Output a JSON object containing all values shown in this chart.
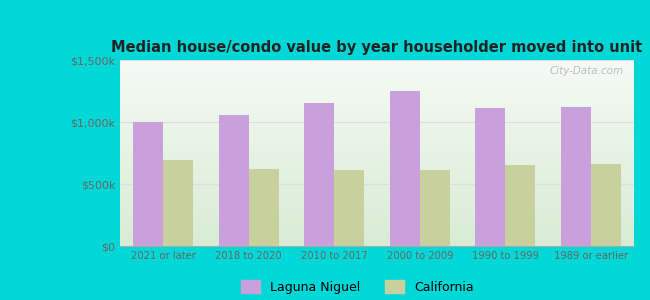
{
  "title": "Median house/condo value by year householder moved into unit",
  "categories": [
    "2021 or later",
    "2018 to 2020",
    "2010 to 2017",
    "2000 to 2009",
    "1990 to 1999",
    "1989 or earlier"
  ],
  "laguna_niguel": [
    1000000,
    1060000,
    1150000,
    1250000,
    1115000,
    1125000
  ],
  "california": [
    690000,
    620000,
    610000,
    615000,
    650000,
    665000
  ],
  "bar_color_laguna": "#c9a0dc",
  "bar_color_california": "#c8d09e",
  "background_outer": "#00d8d8",
  "background_plot_top": "#f5faf5",
  "background_plot_bottom": "#d8ecd4",
  "ylim": [
    0,
    1500000
  ],
  "yticks": [
    0,
    500000,
    1000000,
    1500000
  ],
  "ytick_labels": [
    "$0",
    "$500k",
    "$1,000k",
    "$1,500k"
  ],
  "legend_laguna": "Laguna Niguel",
  "legend_california": "California",
  "watermark": "City-Data.com",
  "title_color": "#222222",
  "tick_color": "#666666",
  "grid_color": "#dddddd"
}
